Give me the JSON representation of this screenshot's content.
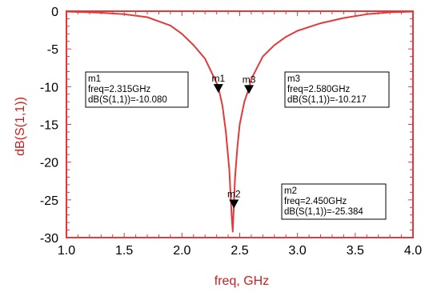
{
  "chart_data": {
    "type": "line",
    "xlabel": "freq, GHz",
    "ylabel": "dB(S(1,1))",
    "xlim": [
      1.0,
      4.0
    ],
    "ylim": [
      -30,
      0
    ],
    "xticks": [
      "1.0",
      "1.5",
      "2.0",
      "2.5",
      "3.0",
      "3.5",
      "4.0"
    ],
    "yticks": [
      "0",
      "-5",
      "-10",
      "-15",
      "-20",
      "-25",
      "-30"
    ],
    "grid": false,
    "colors": {
      "series": "#e23a3a",
      "axis_title": "#cc1f1f",
      "marker": "#000000"
    },
    "series": [
      {
        "x": [
          1.0,
          1.3,
          1.5,
          1.7,
          1.9,
          2.0,
          2.1,
          2.2,
          2.3,
          2.315,
          2.35,
          2.38,
          2.41,
          2.43,
          2.44,
          2.45,
          2.46,
          2.48,
          2.5,
          2.54,
          2.58,
          2.6,
          2.7,
          2.8,
          2.9,
          3.0,
          3.2,
          3.4,
          3.6,
          3.8,
          4.0
        ],
        "values": [
          -0.05,
          -0.2,
          -0.4,
          -0.8,
          -1.9,
          -3.0,
          -4.5,
          -6.3,
          -9.5,
          -10.08,
          -12.5,
          -16.0,
          -21.0,
          -27.0,
          -29.2,
          -25.384,
          -22.0,
          -18.0,
          -15.0,
          -12.0,
          -10.217,
          -9.0,
          -6.0,
          -4.5,
          -3.4,
          -2.6,
          -1.6,
          -0.9,
          -0.4,
          -0.15,
          -0.05
        ]
      }
    ],
    "markers": [
      {
        "name": "m1",
        "label": "m1",
        "x": 2.315,
        "y": -10.08,
        "line1": "m1",
        "line2": "freq=2.315GHz",
        "line3": "dB(S(1,1))=-10.080"
      },
      {
        "name": "m2",
        "label": "m2",
        "x": 2.45,
        "y": -25.384,
        "line1": "m2",
        "line2": "freq=2.450GHz",
        "line3": "dB(S(1,1))=-25.384"
      },
      {
        "name": "m3",
        "label": "m3",
        "x": 2.58,
        "y": -10.217,
        "line1": "m3",
        "line2": "freq=2.580GHz",
        "line3": "dB(S(1,1))=-10.217"
      }
    ]
  }
}
